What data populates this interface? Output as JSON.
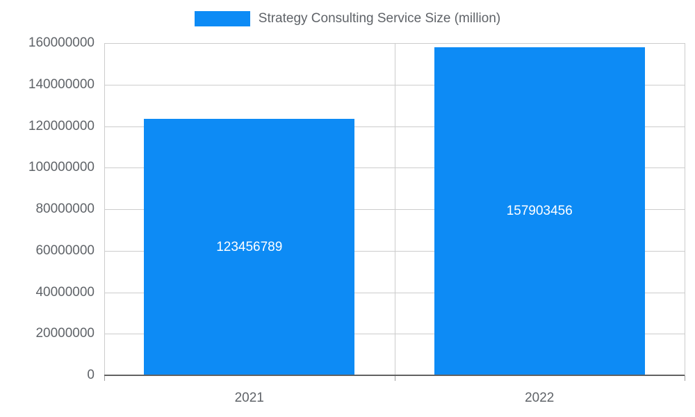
{
  "legend": {
    "label": "Strategy Consulting Service Size (million)"
  },
  "colors": {
    "bar": "#0d8bf5",
    "value_label": "#ffffff",
    "tick_text": "#5f6368",
    "gridline": "#cccccc",
    "axis": "#616161"
  },
  "chart_data": {
    "type": "bar",
    "title": "Strategy Consulting Service Size (million)",
    "categories": [
      "2021",
      "2022"
    ],
    "values": [
      123456789,
      157903456
    ],
    "value_labels": [
      "123456789",
      "157903456"
    ],
    "yticks": [
      0,
      20000000,
      40000000,
      60000000,
      80000000,
      100000000,
      120000000,
      140000000,
      160000000
    ],
    "ytick_labels": [
      "0",
      "20000000",
      "40000000",
      "60000000",
      "80000000",
      "100000000",
      "120000000",
      "140000000",
      "160000000"
    ],
    "ylim": [
      0,
      160000000
    ],
    "xlabel": "",
    "ylabel": "",
    "grid": true,
    "legend_position": "top",
    "series": [
      {
        "name": "Strategy Consulting Service Size (million)",
        "values": [
          123456789,
          157903456
        ]
      }
    ]
  }
}
